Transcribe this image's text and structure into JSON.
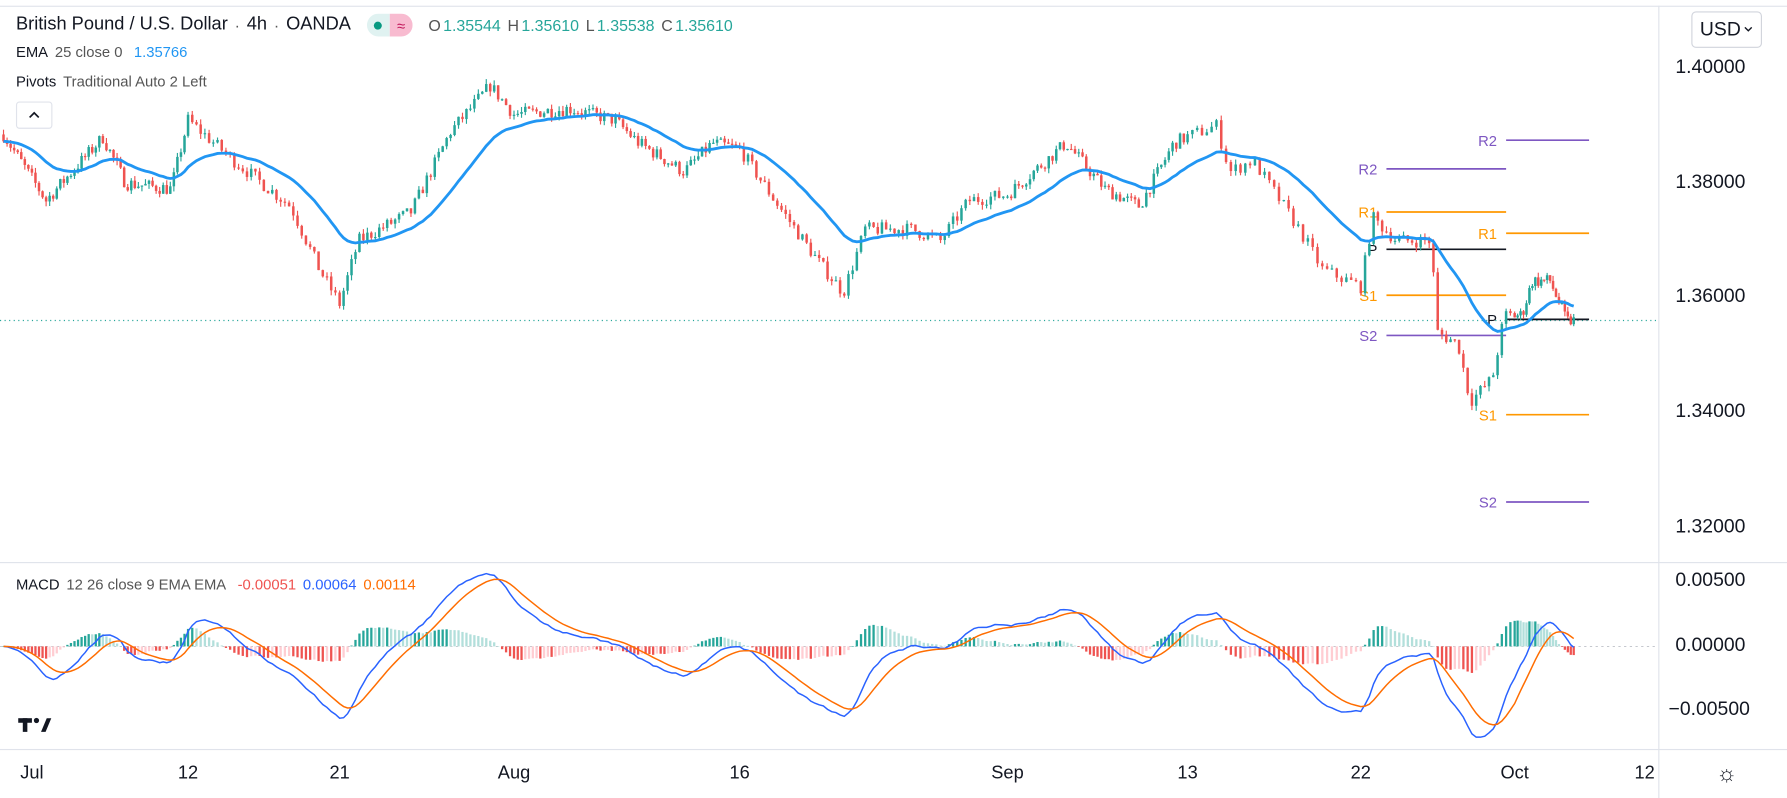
{
  "header": {
    "symbol": "British Pound / U.S. Dollar",
    "sep": "·",
    "interval": "4h",
    "exchange": "OANDA",
    "ohlc": {
      "o_label": "O",
      "o": "1.35544",
      "h_label": "H",
      "h": "1.35610",
      "l_label": "L",
      "l": "1.35538",
      "c_label": "C",
      "c": "1.35610"
    },
    "market_icon": "≈"
  },
  "indicators": {
    "ema": {
      "label": "EMA",
      "params": "25 close 0",
      "value": "1.35766"
    },
    "pivots": {
      "label": "Pivots",
      "params": "Traditional Auto 2 Left"
    },
    "collapse_icon": "^",
    "macd": {
      "label": "MACD",
      "params": "12 26 close 9 EMA EMA",
      "hist": "-0.00051",
      "macd": "0.00064",
      "signal": "0.00114"
    }
  },
  "currency_button": "USD",
  "price_axis": [
    "1.40000",
    "1.38000",
    "1.36000",
    "1.34000",
    "1.32000"
  ],
  "macd_axis": [
    "0.00500",
    "0.00000",
    "−0.00500"
  ],
  "settings_icon": "☼",
  "colors": {
    "up": "#26a69a",
    "down": "#ef5350",
    "ema": "#2196f3",
    "macd": "#2962ff",
    "signal": "#ff6d00",
    "r": "#ff9800",
    "s": "#ff9800",
    "r2": "#7e57c2",
    "p": "#131722"
  },
  "chart_data": {
    "type": "candlestick",
    "title": "British Pound / U.S. Dollar · 4h · OANDA",
    "ylim": [
      1.315,
      1.404
    ],
    "time_ticks": [
      {
        "label": "Jul",
        "day": 0
      },
      {
        "label": "12",
        "day": 11
      },
      {
        "label": "21",
        "day": 20
      },
      {
        "label": "Aug",
        "day": 31
      },
      {
        "label": "16",
        "day": 46
      },
      {
        "label": "Sep",
        "day": 62
      },
      {
        "label": "13",
        "day": 74
      },
      {
        "label": "22",
        "day": 83
      },
      {
        "label": "Oct",
        "day": 92
      },
      {
        "label": "12",
        "day": 103
      }
    ],
    "last_price": 1.3561,
    "price_path": [
      [
        -2,
        1.3885
      ],
      [
        1,
        1.377
      ],
      [
        5,
        1.388
      ],
      [
        6.6,
        1.38
      ],
      [
        9.8,
        1.379
      ],
      [
        11,
        1.391
      ],
      [
        13.7,
        1.384
      ],
      [
        17.1,
        1.376
      ],
      [
        18.8,
        1.365
      ],
      [
        20,
        1.359
      ],
      [
        21.2,
        1.37
      ],
      [
        24.5,
        1.375
      ],
      [
        27,
        1.389
      ],
      [
        29.5,
        1.397
      ],
      [
        31,
        1.392
      ],
      [
        34.7,
        1.393
      ],
      [
        37.7,
        1.391
      ],
      [
        39.3,
        1.387
      ],
      [
        42.3,
        1.382
      ],
      [
        44.2,
        1.387
      ],
      [
        46,
        1.386
      ],
      [
        48.1,
        1.377
      ],
      [
        50.8,
        1.366
      ],
      [
        52.2,
        1.361
      ],
      [
        53.5,
        1.372
      ],
      [
        56.3,
        1.372
      ],
      [
        58,
        1.37
      ],
      [
        59.7,
        1.377
      ],
      [
        62,
        1.378
      ],
      [
        65.9,
        1.387
      ],
      [
        68.5,
        1.379
      ],
      [
        70.8,
        1.376
      ],
      [
        73.1,
        1.387
      ],
      [
        75.5,
        1.39
      ],
      [
        76.2,
        1.382
      ],
      [
        77.4,
        1.384
      ],
      [
        79.8,
        1.372
      ],
      [
        81,
        1.365
      ],
      [
        83,
        1.362
      ],
      [
        83.7,
        1.374
      ],
      [
        85.1,
        1.37
      ],
      [
        87.1,
        1.37
      ],
      [
        87.5,
        1.354
      ],
      [
        88.7,
        1.352
      ],
      [
        89.4,
        1.342
      ],
      [
        90.7,
        1.346
      ],
      [
        91.4,
        1.357
      ],
      [
        92.6,
        1.357
      ],
      [
        93.5,
        1.363
      ],
      [
        95,
        1.363
      ],
      [
        96.4,
        1.356
      ],
      [
        97.2,
        1.3561
      ]
    ],
    "pivots": [
      {
        "from_day": 84.5,
        "to_day": 91.5,
        "levels": [
          {
            "name": "R2",
            "price": 1.3825,
            "kind": "r2"
          },
          {
            "name": "R1",
            "price": 1.375,
            "kind": "r"
          },
          {
            "name": "P",
            "price": 1.3685,
            "kind": "p"
          },
          {
            "name": "S1",
            "price": 1.3605,
            "kind": "s"
          },
          {
            "name": "S2",
            "price": 1.3535,
            "kind": "r2"
          }
        ]
      },
      {
        "from_day": 91.5,
        "to_day": 98.3,
        "levels": [
          {
            "name": "R2",
            "price": 1.3875,
            "kind": "r2"
          },
          {
            "name": "R1",
            "price": 1.3713,
            "kind": "r"
          },
          {
            "name": "P",
            "price": 1.3563,
            "kind": "p"
          },
          {
            "name": "S1",
            "price": 1.3397,
            "kind": "s"
          },
          {
            "name": "S2",
            "price": 1.3245,
            "kind": "r2"
          }
        ]
      }
    ],
    "macd_ylim": [
      -0.0075,
      0.0065
    ]
  }
}
